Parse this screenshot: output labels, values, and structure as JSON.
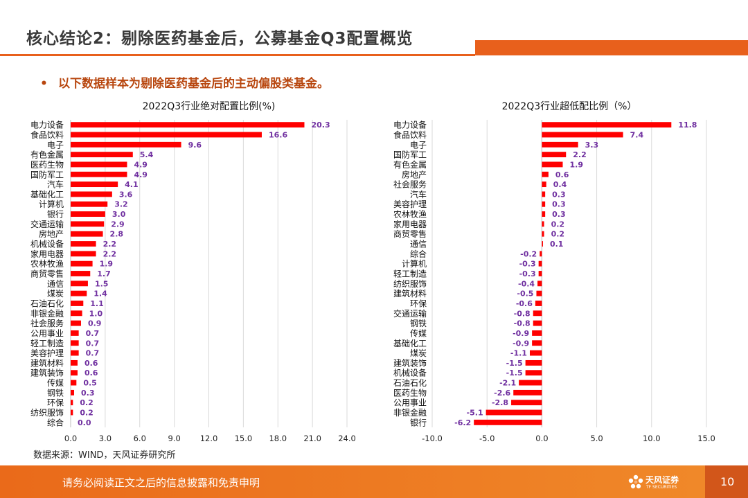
{
  "slide": {
    "title": "核心结论2：剔除医药基金后，公募基金Q3配置概览",
    "bullet_marker": "•",
    "bullet": "以下数据样本为剔除医药基金后的主动偏股类基金。",
    "source": "数据来源：WIND，天风证券研究所",
    "footer": "请务必阅读正文之后的信息披露和免责申明",
    "logo_cn": "天风证券",
    "logo_en": "TF SECURITIES",
    "page_number": "10"
  },
  "colors": {
    "bar": "#ff0000",
    "label": "#7030a0",
    "accent": "#e8601c"
  },
  "chart_data": [
    {
      "type": "bar",
      "orientation": "horizontal",
      "title": "2022Q3行业绝对配置比例(%)",
      "categories": [
        "电力设备",
        "食品饮料",
        "电子",
        "有色金属",
        "医药生物",
        "国防军工",
        "汽车",
        "基础化工",
        "计算机",
        "银行",
        "交通运输",
        "房地产",
        "机械设备",
        "家用电器",
        "农林牧渔",
        "商贸零售",
        "通信",
        "煤炭",
        "石油石化",
        "非银金融",
        "社会服务",
        "公用事业",
        "轻工制造",
        "美容护理",
        "建筑材料",
        "建筑装饰",
        "传媒",
        "钢铁",
        "环保",
        "纺织服饰",
        "综合"
      ],
      "values": [
        20.3,
        16.6,
        9.6,
        5.4,
        4.9,
        4.9,
        4.1,
        3.6,
        3.2,
        3.0,
        2.9,
        2.8,
        2.2,
        2.2,
        1.9,
        1.7,
        1.5,
        1.4,
        1.1,
        1.0,
        0.9,
        0.7,
        0.7,
        0.7,
        0.6,
        0.6,
        0.5,
        0.3,
        0.2,
        0.2,
        0.0
      ],
      "labels": [
        "20.3",
        "16.6",
        "9.6",
        "5.4",
        "4.9",
        "4.9",
        "4.1",
        "3.6",
        "3.2",
        "3.0",
        "2.9",
        "2.8",
        "2.2",
        "2.2",
        "1.9",
        "1.7",
        "1.5",
        "1.4",
        "1.1",
        "1.0",
        "0.9",
        "0.7",
        "0.7",
        "0.7",
        "0.6",
        "0.6",
        "0.5",
        "0.3",
        "0.2",
        "0.2",
        "0.0"
      ],
      "xlim": [
        0,
        24
      ],
      "xticks": [
        "0.0",
        "3.0",
        "6.0",
        "9.0",
        "12.0",
        "15.0",
        "18.0",
        "21.0",
        "24.0"
      ],
      "grid": true
    },
    {
      "type": "bar",
      "orientation": "horizontal",
      "title": "2022Q3行业超低配比例（%）",
      "categories": [
        "电力设备",
        "食品饮料",
        "电子",
        "国防军工",
        "有色金属",
        "房地产",
        "社会服务",
        "汽车",
        "美容护理",
        "农林牧渔",
        "家用电器",
        "商贸零售",
        "通信",
        "综合",
        "计算机",
        "轻工制造",
        "纺织服饰",
        "建筑材料",
        "环保",
        "交通运输",
        "钢铁",
        "传媒",
        "基础化工",
        "煤炭",
        "建筑装饰",
        "机械设备",
        "石油石化",
        "医药生物",
        "公用事业",
        "非银金融",
        "银行"
      ],
      "values": [
        11.8,
        7.4,
        3.3,
        2.2,
        1.9,
        0.6,
        0.4,
        0.3,
        0.3,
        0.3,
        0.2,
        0.2,
        0.1,
        -0.2,
        -0.3,
        -0.3,
        -0.4,
        -0.5,
        -0.6,
        -0.8,
        -0.8,
        -0.9,
        -0.9,
        -1.1,
        -1.5,
        -1.5,
        -2.1,
        -2.6,
        -2.8,
        -5.1,
        -6.2
      ],
      "labels": [
        "11.8",
        "7.4",
        "3.3",
        "2.2",
        "1.9",
        "0.6",
        "0.4",
        "0.3",
        "0.3",
        "0.3",
        "0.2",
        "0.2",
        "0.1",
        "-0.2",
        "-0.3",
        "-0.3",
        "-0.4",
        "-0.5",
        "-0.6",
        "-0.8",
        "-0.8",
        "-0.9",
        "-0.9",
        "-1.1",
        "-1.5",
        "-1.5",
        "-2.1",
        "-2.6",
        "-2.8",
        "-5.1",
        "-6.2"
      ],
      "xlim": [
        -10,
        15
      ],
      "xticks": [
        "-10.0",
        "-5.0",
        "0.0",
        "5.0",
        "10.0",
        "15.0"
      ],
      "grid": true
    }
  ]
}
